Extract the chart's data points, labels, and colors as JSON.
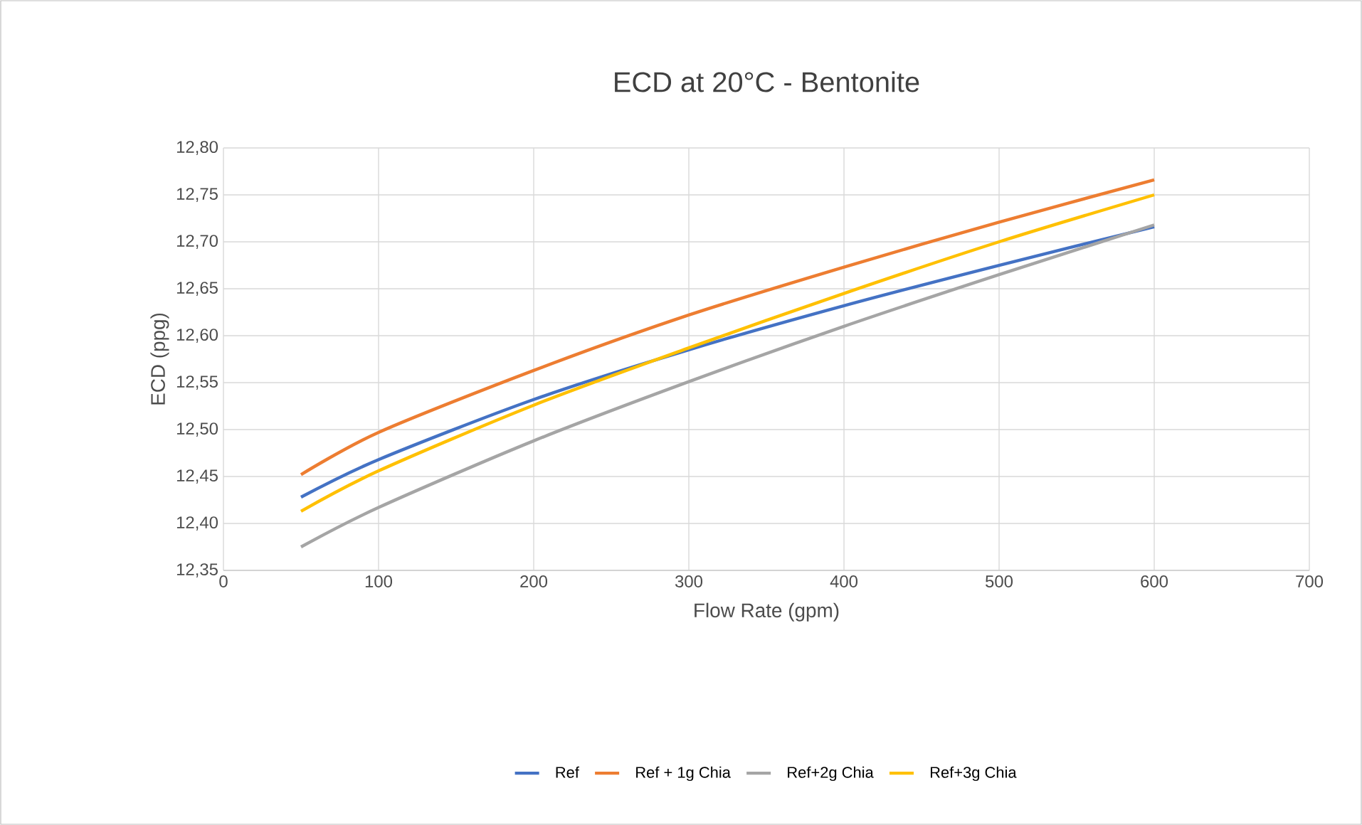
{
  "chart_data": {
    "type": "line",
    "title": "ECD at 20°C - Bentonite",
    "xlabel": "Flow Rate (gpm)",
    "ylabel": "ECD (ppg)",
    "x": [
      50,
      100,
      200,
      300,
      400,
      500,
      600
    ],
    "series": [
      {
        "name": "Ref",
        "color": "#4472c4",
        "values": [
          12.428,
          12.468,
          12.532,
          12.585,
          12.632,
          12.675,
          12.716
        ]
      },
      {
        "name": "Ref + 1g Chia",
        "color": "#ed7d31",
        "values": [
          12.452,
          12.497,
          12.563,
          12.622,
          12.673,
          12.721,
          12.766
        ]
      },
      {
        "name": "Ref+2g Chia",
        "color": "#a5a5a5",
        "values": [
          12.375,
          12.417,
          12.488,
          12.551,
          12.61,
          12.665,
          12.718
        ]
      },
      {
        "name": "Ref+3g Chia",
        "color": "#ffc000",
        "values": [
          12.413,
          12.456,
          12.526,
          12.587,
          12.645,
          12.7,
          12.75
        ]
      }
    ],
    "xlim": [
      0,
      700
    ],
    "xticks": [
      0,
      100,
      200,
      300,
      400,
      500,
      600,
      700
    ],
    "ylim": [
      12.35,
      12.8
    ],
    "yticks": [
      {
        "value": 12.35,
        "label": "12,35"
      },
      {
        "value": 12.4,
        "label": "12,40"
      },
      {
        "value": 12.45,
        "label": "12,45"
      },
      {
        "value": 12.5,
        "label": "12,50"
      },
      {
        "value": 12.55,
        "label": "12,55"
      },
      {
        "value": 12.6,
        "label": "12,60"
      },
      {
        "value": 12.65,
        "label": "12,65"
      },
      {
        "value": 12.7,
        "label": "12,70"
      },
      {
        "value": 12.75,
        "label": "12,75"
      },
      {
        "value": 12.8,
        "label": "12,80"
      }
    ],
    "grid": true,
    "legend": "bottom",
    "marker": "none",
    "line_style": "solid"
  }
}
